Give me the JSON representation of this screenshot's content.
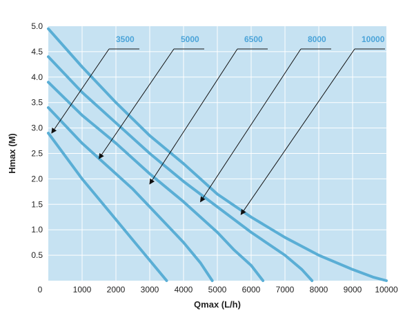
{
  "chart_data": {
    "type": "line",
    "title": "",
    "xlabel": "Qmax (L/h)",
    "ylabel": "Hmax (M)",
    "xlim": [
      0,
      10000
    ],
    "ylim": [
      0,
      5.0
    ],
    "x_ticks": [
      0,
      1000,
      2000,
      3000,
      4000,
      5000,
      6000,
      7000,
      8000,
      9000,
      10000
    ],
    "x_tick_labels": [
      "0",
      "1000",
      "2000",
      "3000",
      "4000",
      "5000",
      "6000",
      "7000",
      "8000",
      "9000",
      "10000"
    ],
    "y_ticks": [
      0.5,
      1.0,
      1.5,
      2.0,
      2.5,
      3.0,
      3.5,
      4.0,
      4.5,
      5.0
    ],
    "y_tick_labels": [
      "0.5",
      "1.0",
      "1.5",
      "2.0",
      "2.5",
      "3.0",
      "3.5",
      "4.0",
      "4.5",
      "5.0"
    ],
    "origin_label": "0",
    "grid": true,
    "colors": {
      "plot_background": "#c6e2f2",
      "grid": "#ffffff",
      "series_line": "#5aaed5",
      "series_label": "#4aa3d8",
      "leader_line": "#111111"
    },
    "series": [
      {
        "name": "3500",
        "x": [
          0,
          500,
          1000,
          1500,
          2000,
          2500,
          3000,
          3500
        ],
        "y": [
          2.9,
          2.45,
          2.0,
          1.6,
          1.2,
          0.8,
          0.4,
          0.0
        ],
        "annotation_target": {
          "x": 100,
          "y": 2.9
        }
      },
      {
        "name": "5000",
        "x": [
          0,
          500,
          1000,
          1500,
          2000,
          2500,
          3000,
          3500,
          4000,
          4500,
          4850
        ],
        "y": [
          3.4,
          3.05,
          2.7,
          2.4,
          2.1,
          1.8,
          1.45,
          1.1,
          0.75,
          0.35,
          0.0
        ],
        "annotation_target": {
          "x": 1500,
          "y": 2.4
        }
      },
      {
        "name": "6500",
        "x": [
          0,
          1000,
          2000,
          3000,
          4000,
          5000,
          5500,
          6000,
          6350
        ],
        "y": [
          3.9,
          3.25,
          2.7,
          2.1,
          1.55,
          0.95,
          0.6,
          0.3,
          0.0
        ],
        "annotation_target": {
          "x": 3000,
          "y": 1.9
        }
      },
      {
        "name": "8000",
        "x": [
          0,
          1000,
          2000,
          3000,
          4000,
          5000,
          6000,
          7000,
          7500,
          7800
        ],
        "y": [
          4.4,
          3.7,
          3.1,
          2.5,
          1.95,
          1.45,
          0.95,
          0.5,
          0.22,
          0.0
        ],
        "annotation_target": {
          "x": 4500,
          "y": 1.55
        }
      },
      {
        "name": "10000",
        "x": [
          0,
          1000,
          2000,
          3000,
          4000,
          5000,
          6000,
          7000,
          8000,
          9000,
          9600,
          10000
        ],
        "y": [
          4.95,
          4.2,
          3.5,
          2.85,
          2.3,
          1.7,
          1.25,
          0.85,
          0.5,
          0.22,
          0.07,
          0.0
        ],
        "annotation_target": {
          "x": 5700,
          "y": 1.3
        }
      }
    ]
  }
}
